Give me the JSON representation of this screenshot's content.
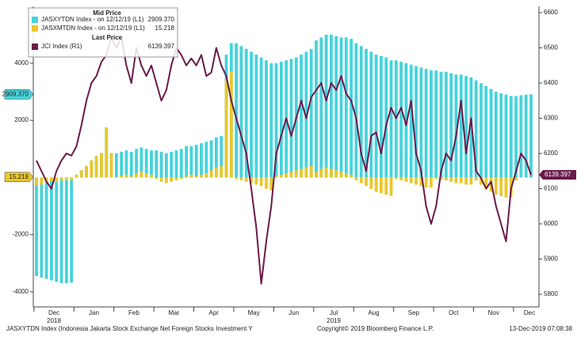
{
  "chart_data": {
    "type": "bar",
    "legend_groups": [
      "Mid Price",
      "Last Price"
    ],
    "categories": [
      "Dec",
      null,
      null,
      null,
      null,
      null,
      null,
      null,
      "Jan",
      null,
      null,
      null,
      null,
      null,
      null,
      null,
      "Feb",
      null,
      null,
      null,
      null,
      null,
      null,
      null,
      "Mar",
      null,
      null,
      null,
      null,
      null,
      null,
      null,
      "Apr",
      null,
      null,
      null,
      null,
      null,
      null,
      null,
      "May",
      null,
      null,
      null,
      null,
      null,
      null,
      null,
      "Jun",
      null,
      null,
      null,
      null,
      null,
      null,
      null,
      "Jul",
      null,
      null,
      null,
      null,
      null,
      null,
      null,
      "Aug",
      null,
      null,
      null,
      null,
      null,
      null,
      null,
      "Sep",
      null,
      null,
      null,
      null,
      null,
      null,
      null,
      "Oct",
      null,
      null,
      null,
      null,
      null,
      null,
      null,
      "Nov",
      null,
      null,
      null,
      null,
      null,
      null,
      null,
      "Dec",
      null,
      null,
      null
    ],
    "year_labels": [
      {
        "label": "2018",
        "index": 0
      },
      {
        "label": "2019",
        "index": 56
      }
    ],
    "series": [
      {
        "name": "JASXYTDN Index - on 12/12/19 (L1)",
        "last_label": "2909.370",
        "type": "bar",
        "axis": "y",
        "color": "#44d3dc",
        "values": [
          -3450,
          -3500,
          -3550,
          -3600,
          -3650,
          -3700,
          -3700,
          -3680,
          100,
          250,
          400,
          600,
          750,
          850,
          1750,
          850,
          850,
          900,
          950,
          900,
          1000,
          1050,
          1000,
          950,
          950,
          900,
          850,
          900,
          950,
          1000,
          1100,
          1100,
          1150,
          1200,
          1250,
          1300,
          1400,
          1450,
          4300,
          4700,
          4700,
          4600,
          4500,
          4400,
          4300,
          4200,
          4100,
          4000,
          4000,
          4050,
          4100,
          4150,
          4200,
          4300,
          4400,
          4500,
          4800,
          4900,
          5000,
          5000,
          4950,
          4900,
          4900,
          4850,
          4700,
          4600,
          4500,
          4400,
          4300,
          4250,
          4200,
          4100,
          4100,
          4050,
          4000,
          3950,
          3900,
          3850,
          3800,
          3750,
          3750,
          3700,
          3700,
          3650,
          3600,
          3600,
          3550,
          3500,
          3400,
          3300,
          3200,
          3100,
          3000,
          2950,
          2900,
          2850,
          2850,
          2880,
          2900,
          2909.37
        ]
      },
      {
        "name": "JASXMTDN Index - on 12/12/19 (L1)",
        "last_label": "15.218",
        "type": "bar",
        "axis": "y",
        "color": "#e8c82c",
        "values": [
          -300,
          -250,
          -200,
          -150,
          -150,
          -100,
          -100,
          -100,
          100,
          250,
          400,
          600,
          750,
          850,
          1750,
          850,
          20,
          60,
          100,
          50,
          150,
          200,
          150,
          100,
          -50,
          -150,
          -200,
          -150,
          -100,
          -50,
          50,
          100,
          50,
          100,
          150,
          250,
          350,
          400,
          3400,
          3700,
          -50,
          -100,
          -150,
          -200,
          -250,
          -300,
          -400,
          -450,
          50,
          100,
          150,
          200,
          250,
          300,
          350,
          400,
          200,
          300,
          350,
          300,
          250,
          200,
          150,
          100,
          -100,
          -200,
          -300,
          -400,
          -500,
          -550,
          -600,
          -650,
          -50,
          -100,
          -150,
          -200,
          -250,
          -300,
          -350,
          -350,
          -50,
          -80,
          -100,
          -150,
          -200,
          -200,
          -250,
          -250,
          -100,
          -250,
          -400,
          -500,
          -600,
          -650,
          -700,
          -700,
          -100,
          0,
          10,
          15.218
        ]
      },
      {
        "name": "JCI Index (R1)",
        "last_label": "6139.397",
        "type": "line",
        "axis": "y2",
        "color": "#6b1a4a",
        "values": [
          6180,
          6150,
          6120,
          6100,
          6150,
          6180,
          6200,
          6194,
          6220,
          6280,
          6350,
          6400,
          6420,
          6460,
          6480,
          6530,
          6500,
          6530,
          6450,
          6400,
          6500,
          6450,
          6420,
          6450,
          6400,
          6350,
          6380,
          6450,
          6500,
          6480,
          6450,
          6470,
          6450,
          6480,
          6420,
          6430,
          6500,
          6450,
          6420,
          6350,
          6300,
          6250,
          6200,
          6100,
          5990,
          5830,
          5950,
          6050,
          6200,
          6250,
          6300,
          6250,
          6300,
          6350,
          6300,
          6360,
          6380,
          6400,
          6350,
          6400,
          6380,
          6420,
          6370,
          6350,
          6300,
          6200,
          6150,
          6250,
          6260,
          6200,
          6280,
          6330,
          6300,
          6330,
          6280,
          6350,
          6200,
          6150,
          6050,
          6000,
          6050,
          6150,
          6200,
          6180,
          6250,
          6350,
          6200,
          6300,
          6150,
          6130,
          6100,
          6120,
          6050,
          6000,
          5950,
          6100,
          6150,
          6200,
          6180,
          6139.397
        ]
      }
    ],
    "ylim": [
      -4530,
      5990
    ],
    "yticks": [
      -4000,
      -2000,
      2000,
      4000
    ],
    "y2lim": [
      5764,
      6618
    ],
    "y2ticks": [
      5800,
      5900,
      6000,
      6100,
      6200,
      6300,
      6400,
      6500,
      6600
    ],
    "footer": {
      "left": "JASXYTDN Index (Indonesia Jakarta Stock Exchange Net Foreign Stocks Investment Y",
      "center": "Copyright© 2019 Bloomberg Finance L.P.",
      "right": "13-Dec-2019 07:08:38"
    }
  }
}
